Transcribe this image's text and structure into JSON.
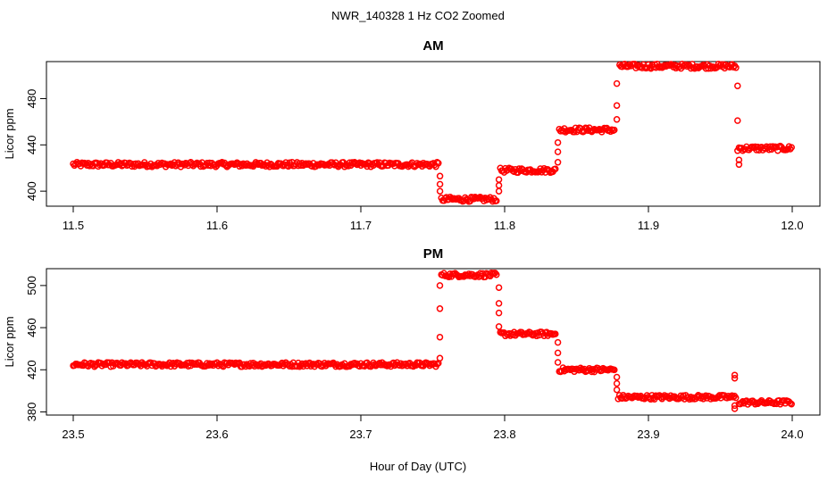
{
  "figure": {
    "title": "NWR_140328  1 Hz CO2 Zoomed",
    "xlabel": "Hour of Day (UTC)",
    "point_color": "#ff0000"
  },
  "chart_data": [
    {
      "type": "scatter",
      "title": "AM",
      "xlabel": "",
      "ylabel": "Licor ppm",
      "xlim": [
        11.5,
        12.0
      ],
      "ylim": [
        387,
        512
      ],
      "x_ticks": [
        11.5,
        11.6,
        11.7,
        11.8,
        11.9,
        12.0
      ],
      "x_tick_labels": [
        "11.5",
        "11.6",
        "11.7",
        "11.8",
        "11.9",
        "12.0"
      ],
      "y_ticks": [
        400,
        440,
        480
      ],
      "y_tick_labels": [
        "400",
        "440",
        "480"
      ],
      "marker": "open-circle",
      "color": "#ff0000",
      "segments": [
        {
          "x_start": 11.5,
          "x_end": 11.754,
          "y": 423
        },
        {
          "x_start": 11.756,
          "x_end": 11.795,
          "y": 393
        },
        {
          "x_start": 11.797,
          "x_end": 11.836,
          "y": 418
        },
        {
          "x_start": 11.838,
          "x_end": 11.877,
          "y": 453
        },
        {
          "x_start": 11.88,
          "x_end": 11.961,
          "y": 508
        },
        {
          "x_start": 11.963,
          "x_end": 12.0,
          "y": 437
        }
      ],
      "transition_points": [
        {
          "x": 11.755,
          "y": 413
        },
        {
          "x": 11.755,
          "y": 406
        },
        {
          "x": 11.755,
          "y": 400
        },
        {
          "x": 11.796,
          "y": 400
        },
        {
          "x": 11.796,
          "y": 405
        },
        {
          "x": 11.796,
          "y": 410
        },
        {
          "x": 11.837,
          "y": 425
        },
        {
          "x": 11.837,
          "y": 434
        },
        {
          "x": 11.837,
          "y": 442
        },
        {
          "x": 11.878,
          "y": 462
        },
        {
          "x": 11.878,
          "y": 474
        },
        {
          "x": 11.878,
          "y": 493
        },
        {
          "x": 11.962,
          "y": 491
        },
        {
          "x": 11.962,
          "y": 461
        },
        {
          "x": 11.963,
          "y": 423
        },
        {
          "x": 11.963,
          "y": 427
        },
        {
          "x": 11.962,
          "y": 435
        }
      ]
    },
    {
      "type": "scatter",
      "title": "PM",
      "xlabel": "",
      "ylabel": "Licor ppm",
      "xlim": [
        23.5,
        24.0
      ],
      "ylim": [
        377,
        516
      ],
      "x_ticks": [
        23.5,
        23.6,
        23.7,
        23.8,
        23.9,
        24.0
      ],
      "x_tick_labels": [
        "23.5",
        "23.6",
        "23.7",
        "23.8",
        "23.9",
        "24.0"
      ],
      "y_ticks": [
        380,
        420,
        460,
        500
      ],
      "y_tick_labels": [
        "380",
        "420",
        "460",
        "500"
      ],
      "marker": "open-circle",
      "color": "#ff0000",
      "segments": [
        {
          "x_start": 23.5,
          "x_end": 23.754,
          "y": 425
        },
        {
          "x_start": 23.756,
          "x_end": 23.795,
          "y": 510
        },
        {
          "x_start": 23.797,
          "x_end": 23.836,
          "y": 454
        },
        {
          "x_start": 23.838,
          "x_end": 23.877,
          "y": 420
        },
        {
          "x_start": 23.879,
          "x_end": 23.961,
          "y": 394
        },
        {
          "x_start": 23.963,
          "x_end": 24.0,
          "y": 389
        }
      ],
      "transition_points": [
        {
          "x": 23.755,
          "y": 431
        },
        {
          "x": 23.755,
          "y": 451
        },
        {
          "x": 23.755,
          "y": 478
        },
        {
          "x": 23.755,
          "y": 500
        },
        {
          "x": 23.796,
          "y": 498
        },
        {
          "x": 23.796,
          "y": 483
        },
        {
          "x": 23.796,
          "y": 474
        },
        {
          "x": 23.796,
          "y": 461
        },
        {
          "x": 23.837,
          "y": 446
        },
        {
          "x": 23.837,
          "y": 436
        },
        {
          "x": 23.837,
          "y": 427
        },
        {
          "x": 23.878,
          "y": 413
        },
        {
          "x": 23.878,
          "y": 407
        },
        {
          "x": 23.878,
          "y": 401
        },
        {
          "x": 23.96,
          "y": 415
        },
        {
          "x": 23.96,
          "y": 412
        },
        {
          "x": 23.96,
          "y": 386
        },
        {
          "x": 23.96,
          "y": 383
        }
      ]
    }
  ]
}
